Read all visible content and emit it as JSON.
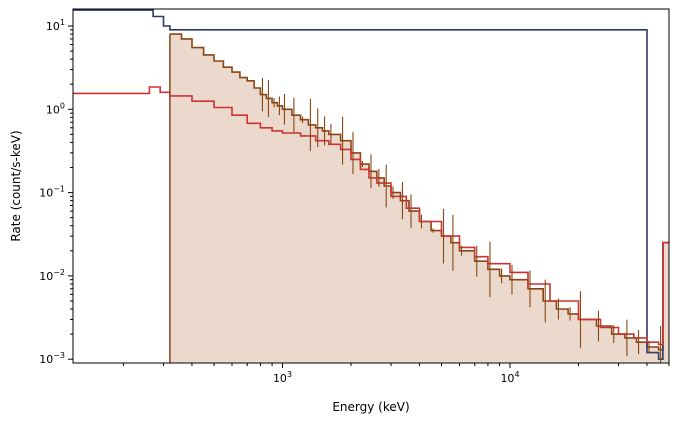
{
  "chart_data": {
    "type": "line",
    "xlabel": "Energy (keV)",
    "ylabel": "Rate (count/s-keV)",
    "xscale": "log",
    "yscale": "log",
    "xlim": [
      120,
      50000
    ],
    "ylim": [
      0.0009,
      16
    ],
    "grid": false,
    "x_ticks": [
      {
        "value": 1000,
        "base": "10",
        "exp": "3"
      },
      {
        "value": 10000,
        "base": "10",
        "exp": "4"
      }
    ],
    "y_ticks": [
      {
        "value": 0.001,
        "base": "10",
        "exp": "−3"
      },
      {
        "value": 0.01,
        "base": "10",
        "exp": "−2"
      },
      {
        "value": 0.1,
        "base": "10",
        "exp": "−1"
      },
      {
        "value": 1,
        "base": "10",
        "exp": "0"
      },
      {
        "value": 10,
        "base": "10",
        "exp": "1"
      }
    ],
    "colors": {
      "navy": "#2b3a67",
      "brown": "#8b4513",
      "red": "#cc3333",
      "fill": "#ead9cc",
      "error": "#8a9cc9"
    },
    "series": [
      {
        "color": "#2b3a67",
        "style": "step",
        "points": [
          [
            120,
            15.5
          ],
          [
            240,
            15.5
          ],
          [
            270,
            13
          ],
          [
            300,
            10
          ],
          [
            320,
            9
          ],
          [
            40000,
            0.0012
          ],
          [
            45000,
            0.001
          ],
          [
            47000,
            0.025
          ],
          [
            50000,
            0.025
          ]
        ]
      },
      {
        "color": "#8b4513",
        "style": "step-filled",
        "points": [
          [
            320,
            8
          ],
          [
            360,
            7
          ],
          [
            400,
            5.5
          ],
          [
            450,
            4.5
          ],
          [
            500,
            3.8
          ],
          [
            550,
            3.2
          ],
          [
            600,
            2.8
          ],
          [
            650,
            2.4
          ],
          [
            700,
            2.2
          ],
          [
            750,
            1.8
          ],
          [
            800,
            1.5
          ],
          [
            850,
            1.35
          ],
          [
            900,
            1.2
          ],
          [
            950,
            1.1
          ],
          [
            1000,
            1.0
          ],
          [
            1100,
            0.85
          ],
          [
            1200,
            0.75
          ],
          [
            1300,
            0.65
          ],
          [
            1400,
            0.6
          ],
          [
            1500,
            0.55
          ],
          [
            1600,
            0.5
          ],
          [
            1800,
            0.42
          ],
          [
            2000,
            0.3
          ],
          [
            2200,
            0.22
          ],
          [
            2400,
            0.18
          ],
          [
            2600,
            0.15
          ],
          [
            2800,
            0.12
          ],
          [
            3000,
            0.1
          ],
          [
            3300,
            0.08
          ],
          [
            3600,
            0.06
          ],
          [
            4000,
            0.045
          ],
          [
            4500,
            0.035
          ],
          [
            5000,
            0.03
          ],
          [
            5500,
            0.025
          ],
          [
            6000,
            0.02
          ],
          [
            7000,
            0.015
          ],
          [
            8000,
            0.012
          ],
          [
            9000,
            0.01
          ],
          [
            10000,
            0.009
          ],
          [
            12000,
            0.007
          ],
          [
            14000,
            0.005
          ],
          [
            16000,
            0.004
          ],
          [
            18000,
            0.0035
          ],
          [
            20000,
            0.003
          ],
          [
            24000,
            0.0025
          ],
          [
            28000,
            0.002
          ],
          [
            32000,
            0.0018
          ],
          [
            36000,
            0.0016
          ],
          [
            40000,
            0.0014
          ],
          [
            45000,
            0.0013
          ],
          [
            47000,
            0.025
          ],
          [
            50000,
            0.025
          ]
        ]
      },
      {
        "color": "#cc3333",
        "style": "step",
        "points": [
          [
            120,
            1.55
          ],
          [
            240,
            1.55
          ],
          [
            260,
            1.85
          ],
          [
            290,
            1.6
          ],
          [
            320,
            1.45
          ],
          [
            400,
            1.25
          ],
          [
            500,
            1.05
          ],
          [
            600,
            0.85
          ],
          [
            700,
            0.68
          ],
          [
            800,
            0.6
          ],
          [
            900,
            0.55
          ],
          [
            1000,
            0.52
          ],
          [
            1200,
            0.48
          ],
          [
            1400,
            0.42
          ],
          [
            1600,
            0.38
          ],
          [
            1800,
            0.33
          ],
          [
            2000,
            0.25
          ],
          [
            2200,
            0.19
          ],
          [
            2400,
            0.15
          ],
          [
            2600,
            0.13
          ],
          [
            3000,
            0.09
          ],
          [
            3500,
            0.065
          ],
          [
            4000,
            0.045
          ],
          [
            5000,
            0.03
          ],
          [
            6000,
            0.022
          ],
          [
            7000,
            0.017
          ],
          [
            8000,
            0.014
          ],
          [
            10000,
            0.011
          ],
          [
            12000,
            0.008
          ],
          [
            15000,
            0.005
          ],
          [
            20000,
            0.003
          ],
          [
            25000,
            0.0024
          ],
          [
            30000,
            0.002
          ],
          [
            35000,
            0.0018
          ],
          [
            40000,
            0.0016
          ],
          [
            45000,
            0.0015
          ],
          [
            47000,
            0.025
          ],
          [
            50000,
            0.026
          ]
        ]
      }
    ]
  }
}
